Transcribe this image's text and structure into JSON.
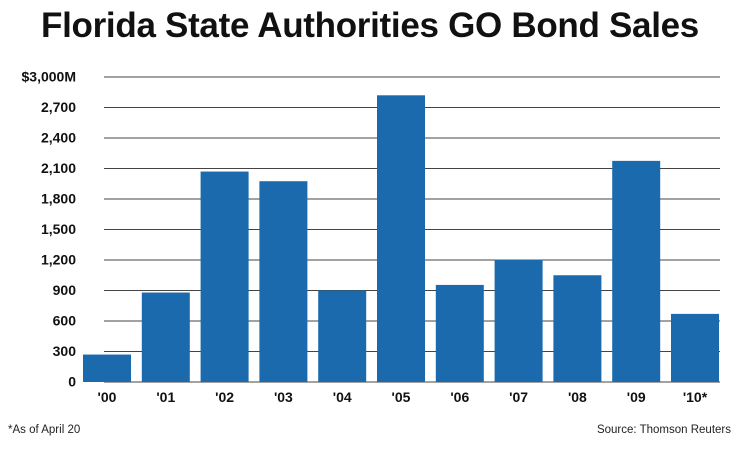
{
  "chart_data": {
    "type": "bar",
    "title": "Florida State Authorities GO Bond Sales",
    "xlabel": "",
    "ylabel": "",
    "categories": [
      "'00",
      "'01",
      "'02",
      "'03",
      "'04",
      "'05",
      "'06",
      "'07",
      "'08",
      "'09",
      "'10*"
    ],
    "values": [
      270,
      880,
      2070,
      1975,
      900,
      2820,
      955,
      1205,
      1050,
      2175,
      670
    ],
    "ylim": [
      0,
      3000
    ],
    "yticks": [
      0,
      300,
      600,
      900,
      1200,
      1500,
      1800,
      2100,
      2400,
      2700,
      3000
    ],
    "ytick_labels": [
      "0",
      "300",
      "600",
      "900",
      "1,200",
      "1,500",
      "1,800",
      "2,100",
      "2,400",
      "2,700",
      "$3,000M"
    ],
    "grid": true,
    "bar_color": "#1a6aad",
    "grid_color": "#444444",
    "footnote": "*As of April 20",
    "source": "Source: Thomson Reuters"
  }
}
